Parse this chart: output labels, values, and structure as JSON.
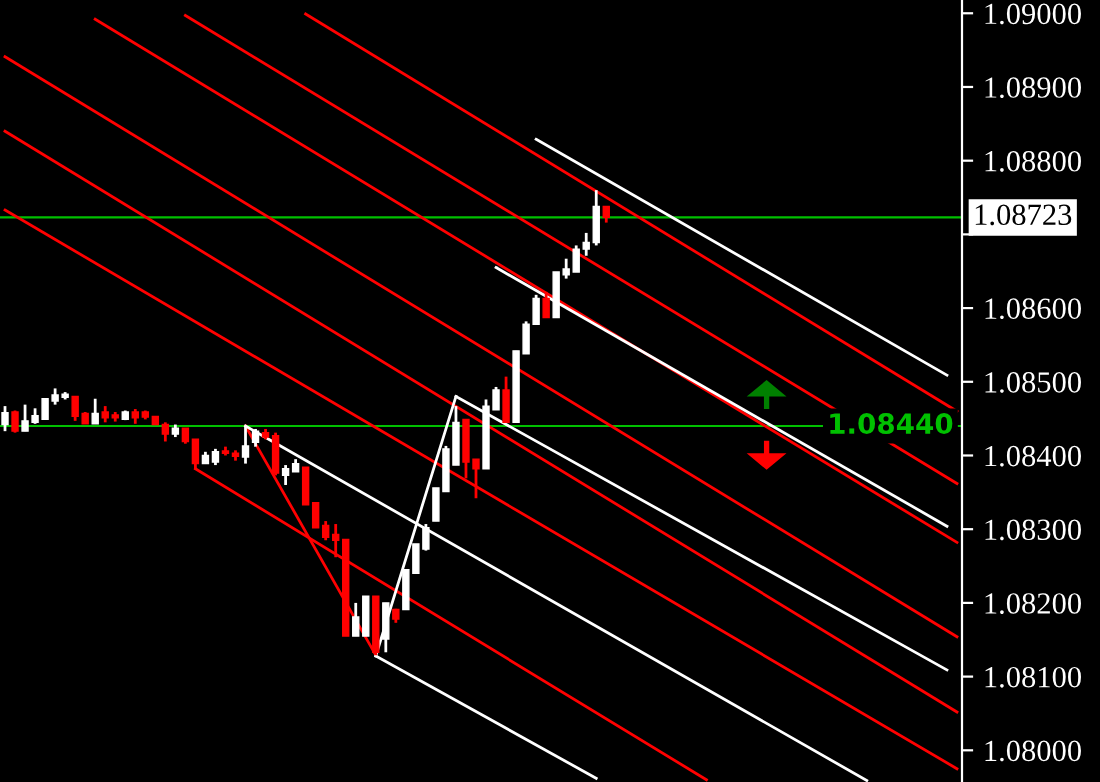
{
  "chart_data": {
    "type": "candlestick",
    "categories": [
      null,
      null,
      null,
      null,
      null,
      null,
      null,
      null,
      null,
      null,
      null,
      null,
      null,
      null,
      null,
      null,
      null,
      null,
      null,
      null,
      null,
      null,
      null,
      null,
      null,
      null,
      null,
      null,
      null,
      null,
      null,
      null,
      null,
      null,
      null,
      null,
      null,
      null,
      null,
      null,
      null,
      null,
      null,
      null,
      null,
      null,
      null,
      null,
      null,
      null,
      null,
      null,
      null,
      null,
      null,
      null,
      null,
      null,
      null,
      null,
      null,
      null,
      null,
      null,
      null,
      null,
      null,
      null,
      null,
      null,
      null,
      null,
      null,
      null,
      null,
      null,
      null,
      null,
      null,
      null,
      null,
      null,
      null,
      null,
      null,
      null,
      null,
      null,
      null,
      null,
      null,
      null,
      null,
      null,
      null,
      null
    ],
    "ohlc": [
      [
        1.08442,
        1.08467,
        1.08433,
        1.08458
      ],
      [
        1.08459,
        1.08461,
        1.08431,
        1.08433
      ],
      [
        1.08433,
        1.08469,
        1.08433,
        1.08447
      ],
      [
        1.08445,
        1.08464,
        1.08443,
        1.08454
      ],
      [
        1.08449,
        1.08477,
        1.08449,
        1.08477
      ],
      [
        1.08474,
        1.08491,
        1.08469,
        1.08482
      ],
      [
        1.08479,
        1.08486,
        1.08476,
        1.08483
      ],
      [
        1.0848,
        1.0848,
        1.08447,
        1.08453
      ],
      [
        1.08457,
        1.08459,
        1.08443,
        1.08443
      ],
      [
        1.08443,
        1.08477,
        1.08443,
        1.08457
      ],
      [
        1.08459,
        1.08467,
        1.08445,
        1.08451
      ],
      [
        1.08455,
        1.08459,
        1.08446,
        1.08451
      ],
      [
        1.08449,
        1.08461,
        1.08448,
        1.08459
      ],
      [
        1.08459,
        1.08463,
        1.08443,
        1.08451
      ],
      [
        1.08459,
        1.08461,
        1.08449,
        1.08452
      ],
      [
        1.08453,
        1.08453,
        1.08442,
        1.08442
      ],
      [
        1.08442,
        1.08445,
        1.08419,
        1.08429
      ],
      [
        1.08429,
        1.08442,
        1.08425,
        1.08437
      ],
      [
        1.08437,
        1.08437,
        1.08416,
        1.08419
      ],
      [
        1.08422,
        1.08422,
        1.08381,
        1.08389
      ],
      [
        1.08389,
        1.08405,
        1.08389,
        1.084
      ],
      [
        1.08391,
        1.08409,
        1.08387,
        1.08405
      ],
      [
        1.08406,
        1.08412,
        1.084,
        1.08403
      ],
      [
        1.08403,
        1.08407,
        1.08393,
        1.08399
      ],
      [
        1.08398,
        1.0844,
        1.08389,
        1.08413
      ],
      [
        1.08418,
        1.08436,
        1.08412,
        1.08433
      ],
      [
        1.08431,
        1.08436,
        1.08422,
        1.08425
      ],
      [
        1.08427,
        1.08431,
        1.08373,
        1.08376
      ],
      [
        1.08373,
        1.08387,
        1.0836,
        1.08382
      ],
      [
        1.08378,
        1.08395,
        1.08378,
        1.08389
      ],
      [
        1.08384,
        1.08384,
        1.08333,
        1.08333
      ],
      [
        1.08336,
        1.08336,
        1.08302,
        1.08302
      ],
      [
        1.08305,
        1.08311,
        1.08285,
        1.08289
      ],
      [
        1.08293,
        1.08307,
        1.08262,
        1.08285
      ],
      [
        1.08286,
        1.08286,
        1.08155,
        1.08155
      ],
      [
        1.08155,
        1.082,
        1.08155,
        1.08181
      ],
      [
        1.08155,
        1.08209,
        1.08155,
        1.08209
      ],
      [
        1.08209,
        1.08209,
        1.08129,
        1.08133
      ],
      [
        1.08151,
        1.082,
        1.08133,
        1.082
      ],
      [
        1.08191,
        1.08192,
        1.08173,
        1.08178
      ],
      [
        1.08191,
        1.08245,
        1.08191,
        1.08245
      ],
      [
        1.0824,
        1.0828,
        1.0824,
        1.0828
      ],
      [
        1.08273,
        1.08307,
        1.08271,
        1.08302
      ],
      [
        1.08311,
        1.08356,
        1.08311,
        1.08356
      ],
      [
        1.08351,
        1.08413,
        1.08351,
        1.08409
      ],
      [
        1.08387,
        1.08467,
        1.08387,
        1.08445
      ],
      [
        1.08449,
        1.08449,
        1.08369,
        1.08391
      ],
      [
        1.08395,
        1.08395,
        1.08342,
        1.08382
      ],
      [
        1.08382,
        1.08476,
        1.08382,
        1.08467
      ],
      [
        1.08462,
        1.08493,
        1.08462,
        1.08489
      ],
      [
        1.08489,
        1.08507,
        1.08445,
        1.08445
      ],
      [
        1.08445,
        1.08542,
        1.08445,
        1.08542
      ],
      [
        1.08538,
        1.08582,
        1.08538,
        1.08578
      ],
      [
        1.08578,
        1.08618,
        1.08578,
        1.08613
      ],
      [
        1.08613,
        1.08622,
        1.08587,
        1.08587
      ],
      [
        1.08587,
        1.08649,
        1.08587,
        1.08649
      ],
      [
        1.08645,
        1.08667,
        1.0864,
        1.08653
      ],
      [
        1.08649,
        1.08685,
        1.08649,
        1.0868
      ],
      [
        1.0868,
        1.08702,
        1.08671,
        1.08689
      ],
      [
        1.08689,
        1.0876,
        1.08685,
        1.08738
      ],
      [
        1.08738,
        1.08738,
        1.08716,
        1.08723
      ],
      null,
      null,
      null,
      null,
      null,
      null,
      null,
      null,
      null,
      null,
      null,
      null,
      null,
      null,
      null,
      null,
      null,
      null,
      null,
      null,
      null,
      null,
      null,
      null,
      null,
      null,
      null,
      null,
      null,
      null,
      null,
      null,
      null,
      null,
      null
    ],
    "colors": [
      "#ffffff",
      "#ff0000",
      "#ffffff",
      "#ffffff",
      "#ffffff",
      "#ffffff",
      "#ffffff",
      "#ff0000",
      "#ff0000",
      "#ffffff",
      "#ff0000",
      "#ff0000",
      "#ffffff",
      "#ff0000",
      "#ff0000",
      "#ff0000",
      "#ff0000",
      "#ffffff",
      "#ff0000",
      "#ff0000",
      "#ffffff",
      "#ffffff",
      "#ff0000",
      "#ff0000",
      "#ffffff",
      "#ffffff",
      "#ff0000",
      "#ff0000",
      "#ffffff",
      "#ffffff",
      "#ff0000",
      "#ff0000",
      "#ff0000",
      "#ff0000",
      "#ff0000",
      "#ffffff",
      "#ffffff",
      "#ff0000",
      "#ffffff",
      "#ff0000",
      "#ffffff",
      "#ffffff",
      "#ffffff",
      "#ffffff",
      "#ffffff",
      "#ffffff",
      "#ff0000",
      "#ff0000",
      "#ffffff",
      "#ffffff",
      "#ff0000",
      "#ffffff",
      "#ffffff",
      "#ffffff",
      "#ff0000",
      "#ffffff",
      "#ffffff",
      "#ffffff",
      "#ffffff",
      "#ffffff",
      "#ff0000",
      null,
      null,
      null,
      null,
      null,
      null,
      null,
      null,
      null,
      null,
      null,
      null,
      null,
      null,
      null,
      null,
      null,
      null,
      null,
      null,
      null,
      null,
      null,
      null,
      null,
      null,
      null,
      null,
      null,
      null,
      null,
      null,
      null,
      null,
      null
    ],
    "series": [
      {
        "type": "line",
        "color": "#ff0000",
        "values": [
          1.08733,
          null,
          null,
          null,
          null,
          null,
          null,
          null,
          null,
          null,
          null,
          null,
          null,
          null,
          null,
          null,
          null,
          null,
          null,
          null,
          null,
          null,
          null,
          null,
          null,
          null,
          null,
          null,
          null,
          null,
          null,
          null,
          null,
          null,
          null,
          null,
          null,
          null,
          null,
          null,
          null,
          null,
          null,
          null,
          null,
          null,
          null,
          null,
          null,
          null,
          null,
          null,
          null,
          null,
          null,
          null,
          null,
          null,
          null,
          null,
          null,
          null,
          null,
          null,
          null,
          null,
          null,
          null,
          null,
          null,
          null,
          null,
          null,
          null,
          null,
          null,
          null,
          null,
          null,
          null,
          null,
          null,
          null,
          null,
          null,
          null,
          null,
          null,
          null,
          null,
          null,
          null,
          null,
          null,
          null,
          1.07975
        ]
      },
      {
        "type": "line",
        "color": "#ff0000",
        "values": [
          1.08941,
          null,
          null,
          null,
          null,
          null,
          null,
          null,
          null,
          null,
          null,
          null,
          null,
          null,
          null,
          null,
          null,
          null,
          null,
          null,
          null,
          null,
          null,
          null,
          null,
          null,
          null,
          null,
          null,
          null,
          null,
          null,
          null,
          null,
          null,
          null,
          null,
          null,
          null,
          null,
          null,
          null,
          null,
          null,
          null,
          null,
          null,
          null,
          null,
          null,
          null,
          null,
          null,
          null,
          null,
          null,
          null,
          null,
          null,
          null,
          null,
          null,
          null,
          null,
          null,
          null,
          null,
          null,
          null,
          null,
          null,
          null,
          null,
          null,
          null,
          null,
          null,
          null,
          null,
          null,
          null,
          null,
          null,
          null,
          null,
          null,
          null,
          null,
          null,
          null,
          null,
          null,
          null,
          null,
          null,
          1.08154
        ]
      },
      {
        "type": "line",
        "color": "#ff0000",
        "values": [
          1.0884,
          null,
          null,
          null,
          null,
          null,
          null,
          null,
          null,
          null,
          null,
          null,
          null,
          null,
          null,
          null,
          null,
          null,
          null,
          null,
          null,
          null,
          null,
          null,
          null,
          null,
          null,
          null,
          null,
          null,
          null,
          null,
          null,
          null,
          null,
          null,
          null,
          null,
          null,
          null,
          null,
          null,
          null,
          null,
          null,
          null,
          null,
          null,
          null,
          null,
          null,
          null,
          null,
          null,
          null,
          null,
          null,
          null,
          null,
          null,
          null,
          null,
          null,
          null,
          null,
          null,
          null,
          null,
          null,
          null,
          null,
          null,
          null,
          null,
          null,
          null,
          null,
          null,
          null,
          null,
          null,
          null,
          null,
          null,
          null,
          null,
          null,
          null,
          null,
          null,
          null,
          null,
          null,
          null,
          null,
          1.08052
        ]
      },
      {
        "type": "line",
        "color": "#ff0000",
        "values": [
          null,
          null,
          null,
          null,
          null,
          null,
          null,
          null,
          null,
          null,
          null,
          null,
          null,
          null,
          null,
          null,
          null,
          null,
          1.08997,
          null,
          null,
          null,
          null,
          null,
          null,
          null,
          null,
          null,
          null,
          null,
          null,
          null,
          null,
          null,
          null,
          null,
          null,
          null,
          null,
          null,
          null,
          null,
          null,
          null,
          null,
          null,
          null,
          null,
          null,
          null,
          null,
          null,
          null,
          null,
          null,
          null,
          null,
          null,
          null,
          null,
          null,
          null,
          null,
          null,
          null,
          null,
          null,
          null,
          null,
          null,
          null,
          null,
          null,
          null,
          null,
          null,
          null,
          null,
          null,
          null,
          null,
          null,
          null,
          null,
          null,
          null,
          null,
          null,
          null,
          null,
          null,
          null,
          null,
          null,
          null,
          1.08362
        ]
      },
      {
        "type": "line",
        "color": "#ff0000",
        "values": [
          null,
          null,
          null,
          null,
          null,
          null,
          null,
          null,
          null,
          null,
          null,
          null,
          null,
          null,
          null,
          null,
          null,
          null,
          null,
          null,
          null,
          null,
          null,
          null,
          null,
          null,
          null,
          null,
          null,
          null,
          1.08999,
          null,
          null,
          null,
          null,
          null,
          null,
          null,
          null,
          null,
          null,
          null,
          null,
          null,
          null,
          null,
          null,
          null,
          null,
          null,
          null,
          null,
          null,
          null,
          null,
          null,
          null,
          null,
          null,
          null,
          null,
          null,
          null,
          null,
          null,
          null,
          null,
          null,
          null,
          null,
          null,
          null,
          null,
          null,
          null,
          null,
          null,
          null,
          null,
          null,
          null,
          null,
          null,
          null,
          null,
          null,
          null,
          null,
          null,
          null,
          null,
          null,
          null,
          null,
          null,
          1.0846
        ]
      },
      {
        "type": "line",
        "color": "#ff0000",
        "values": [
          null,
          null,
          null,
          null,
          null,
          null,
          null,
          null,
          null,
          1.08992,
          null,
          null,
          null,
          null,
          null,
          null,
          null,
          null,
          null,
          null,
          null,
          null,
          null,
          null,
          null,
          null,
          null,
          null,
          null,
          null,
          null,
          null,
          null,
          null,
          null,
          null,
          null,
          null,
          null,
          null,
          null,
          null,
          null,
          null,
          null,
          null,
          null,
          null,
          null,
          null,
          null,
          null,
          null,
          null,
          null,
          null,
          null,
          null,
          null,
          null,
          null,
          null,
          null,
          null,
          null,
          null,
          null,
          null,
          null,
          null,
          null,
          null,
          null,
          null,
          null,
          null,
          null,
          null,
          null,
          null,
          null,
          null,
          null,
          null,
          null,
          null,
          null,
          null,
          null,
          null,
          null,
          null,
          null,
          null,
          null,
          1.08282
        ]
      },
      {
        "type": "line",
        "color": "#ff0000",
        "values": [
          null,
          null,
          null,
          null,
          null,
          null,
          null,
          null,
          null,
          null,
          null,
          null,
          null,
          null,
          null,
          null,
          null,
          null,
          null,
          1.08382,
          null,
          null,
          null,
          null,
          null,
          null,
          null,
          null,
          null,
          null,
          null,
          null,
          null,
          null,
          null,
          null,
          null,
          null,
          null,
          null,
          null,
          null,
          null,
          null,
          null,
          null,
          null,
          null,
          null,
          null,
          null,
          null,
          null,
          null,
          null,
          null,
          null,
          null,
          null,
          null,
          null,
          null,
          null,
          null,
          null,
          null,
          null,
          null,
          null,
          null,
          1.0796,
          null,
          null,
          null,
          null,
          null,
          null,
          null,
          null,
          null,
          null,
          null,
          null,
          null,
          null,
          null,
          null,
          null,
          null,
          null,
          null,
          null,
          null,
          null,
          null,
          null
        ]
      },
      {
        "type": "line",
        "color": "#ff0000",
        "values": [
          null,
          null,
          null,
          null,
          null,
          null,
          null,
          null,
          null,
          null,
          null,
          null,
          null,
          null,
          null,
          null,
          null,
          null,
          null,
          null,
          null,
          null,
          null,
          null,
          1.0844,
          null,
          null,
          null,
          null,
          null,
          null,
          null,
          null,
          null,
          null,
          null,
          null,
          1.08129,
          null,
          null,
          null,
          null,
          null,
          null,
          null,
          null,
          null,
          null,
          null,
          null,
          null,
          null,
          null,
          null,
          null,
          null,
          null,
          null,
          null,
          null,
          null,
          null,
          null,
          null,
          null,
          null,
          null,
          null,
          null,
          null,
          null,
          null,
          null,
          null,
          null,
          null,
          null,
          null,
          null,
          null,
          null,
          null,
          null,
          null,
          null,
          null,
          null,
          null,
          null,
          null,
          null,
          null,
          null,
          null,
          null,
          null
        ]
      },
      {
        "type": "line",
        "color": "#ffffff",
        "values": [
          null,
          null,
          null,
          null,
          null,
          null,
          null,
          null,
          null,
          null,
          null,
          null,
          null,
          null,
          null,
          null,
          null,
          null,
          null,
          null,
          null,
          null,
          null,
          null,
          null,
          null,
          null,
          null,
          null,
          null,
          null,
          null,
          null,
          null,
          null,
          null,
          null,
          null,
          null,
          null,
          null,
          null,
          null,
          null,
          null,
          null,
          null,
          null,
          null,
          null,
          null,
          null,
          null,
          1.08829,
          null,
          null,
          null,
          null,
          null,
          null,
          null,
          null,
          null,
          null,
          null,
          null,
          null,
          null,
          null,
          null,
          null,
          null,
          null,
          null,
          null,
          null,
          null,
          null,
          null,
          null,
          null,
          null,
          null,
          null,
          null,
          null,
          null,
          null,
          null,
          null,
          null,
          null,
          null,
          null,
          1.08509,
          null
        ]
      },
      {
        "type": "line",
        "color": "#ffffff",
        "values": [
          null,
          null,
          null,
          null,
          null,
          null,
          null,
          null,
          null,
          null,
          null,
          null,
          null,
          null,
          null,
          null,
          null,
          null,
          null,
          null,
          null,
          null,
          null,
          null,
          null,
          null,
          null,
          null,
          null,
          null,
          null,
          null,
          null,
          null,
          null,
          null,
          null,
          null,
          null,
          null,
          null,
          null,
          null,
          null,
          null,
          null,
          null,
          null,
          null,
          1.08655,
          null,
          null,
          null,
          null,
          null,
          null,
          null,
          null,
          null,
          null,
          null,
          null,
          null,
          null,
          null,
          null,
          null,
          null,
          null,
          null,
          null,
          null,
          null,
          null,
          null,
          null,
          null,
          null,
          null,
          null,
          null,
          null,
          null,
          null,
          null,
          null,
          null,
          null,
          null,
          null,
          null,
          null,
          null,
          null,
          1.08304,
          null
        ]
      },
      {
        "type": "line",
        "color": "#ffffff",
        "values": [
          null,
          null,
          null,
          null,
          null,
          null,
          null,
          null,
          null,
          null,
          null,
          null,
          null,
          null,
          null,
          null,
          null,
          null,
          null,
          null,
          null,
          null,
          null,
          null,
          null,
          null,
          null,
          null,
          null,
          null,
          null,
          null,
          null,
          null,
          null,
          null,
          null,
          null,
          null,
          null,
          null,
          null,
          null,
          null,
          null,
          1.0848,
          null,
          null,
          null,
          null,
          null,
          null,
          null,
          null,
          null,
          null,
          null,
          null,
          null,
          null,
          null,
          null,
          null,
          null,
          null,
          null,
          null,
          null,
          null,
          null,
          null,
          null,
          null,
          null,
          null,
          null,
          null,
          null,
          null,
          null,
          null,
          null,
          null,
          null,
          null,
          null,
          null,
          null,
          null,
          null,
          null,
          null,
          null,
          null,
          1.08109,
          null
        ]
      },
      {
        "type": "line",
        "color": "#ffffff",
        "values": [
          null,
          null,
          null,
          null,
          null,
          null,
          null,
          null,
          null,
          null,
          null,
          null,
          null,
          null,
          null,
          null,
          null,
          null,
          null,
          null,
          null,
          null,
          null,
          null,
          1.0844,
          null,
          null,
          null,
          null,
          null,
          null,
          null,
          null,
          null,
          null,
          null,
          null,
          null,
          null,
          null,
          null,
          null,
          null,
          null,
          null,
          null,
          null,
          null,
          null,
          null,
          null,
          null,
          null,
          null,
          null,
          null,
          null,
          null,
          null,
          null,
          null,
          null,
          null,
          null,
          null,
          null,
          null,
          null,
          null,
          null,
          null,
          null,
          null,
          null,
          null,
          null,
          null,
          null,
          null,
          null,
          null,
          null,
          null,
          null,
          null,
          null,
          1.07959,
          null,
          null,
          null,
          null,
          null,
          null,
          null,
          null,
          null
        ]
      },
      {
        "type": "line",
        "color": "#ffffff",
        "values": [
          null,
          null,
          null,
          null,
          null,
          null,
          null,
          null,
          null,
          null,
          null,
          null,
          null,
          null,
          null,
          null,
          null,
          null,
          null,
          null,
          null,
          null,
          null,
          null,
          null,
          null,
          null,
          null,
          null,
          null,
          null,
          null,
          null,
          null,
          null,
          null,
          null,
          1.08128,
          null,
          null,
          null,
          null,
          null,
          null,
          null,
          null,
          null,
          null,
          null,
          null,
          null,
          null,
          null,
          null,
          null,
          null,
          null,
          null,
          null,
          1.07962,
          null,
          null,
          null,
          null,
          null,
          null,
          null,
          null,
          null,
          null,
          null,
          null,
          null,
          null,
          null,
          null,
          null,
          null,
          null,
          null,
          null,
          null,
          null,
          null,
          null,
          null,
          null,
          null,
          null,
          null,
          null,
          null,
          null,
          null,
          null,
          null
        ]
      },
      {
        "type": "line",
        "color": "#ffffff",
        "values": [
          null,
          null,
          null,
          null,
          null,
          null,
          null,
          null,
          null,
          null,
          null,
          null,
          null,
          null,
          null,
          null,
          null,
          null,
          null,
          null,
          null,
          null,
          null,
          null,
          null,
          null,
          null,
          null,
          null,
          null,
          null,
          null,
          null,
          null,
          null,
          null,
          null,
          1.08128,
          null,
          null,
          null,
          null,
          null,
          null,
          null,
          1.0848,
          null,
          null,
          null,
          null,
          null,
          null,
          null,
          null,
          null,
          null,
          null,
          null,
          null,
          null,
          null,
          null,
          null,
          null,
          null,
          null,
          null,
          null,
          null,
          null,
          null,
          null,
          null,
          null,
          null,
          null,
          null,
          null,
          null,
          null,
          null,
          null,
          null,
          null,
          null,
          null,
          null,
          null,
          null,
          null,
          null,
          null,
          null,
          null,
          null,
          null
        ]
      }
    ],
    "ref_lines": [
      {
        "axis": "y",
        "value": 1.08723,
        "label": "1.08723",
        "color": "#00c000"
      },
      {
        "axis": "y",
        "value": 1.0844,
        "label": "1.08440",
        "color": "#00c000"
      }
    ],
    "ylim": [
      1.07957,
      1.09018
    ],
    "yticks": [
      {
        "value": 1.08,
        "label": "1.08000"
      },
      {
        "value": 1.081,
        "label": "1.08100"
      },
      {
        "value": 1.082,
        "label": "1.08200"
      },
      {
        "value": 1.083,
        "label": "1.08300"
      },
      {
        "value": 1.084,
        "label": "1.08400"
      },
      {
        "value": 1.085,
        "label": "1.08500"
      },
      {
        "value": 1.086,
        "label": "1.08600"
      },
      {
        "value": 1.087,
        "label": null
      },
      {
        "value": 1.088,
        "label": "1.08800"
      },
      {
        "value": 1.089,
        "label": "1.08900"
      },
      {
        "value": 1.09,
        "label": "1.09000"
      }
    ],
    "tick_labels": "y"
  }
}
